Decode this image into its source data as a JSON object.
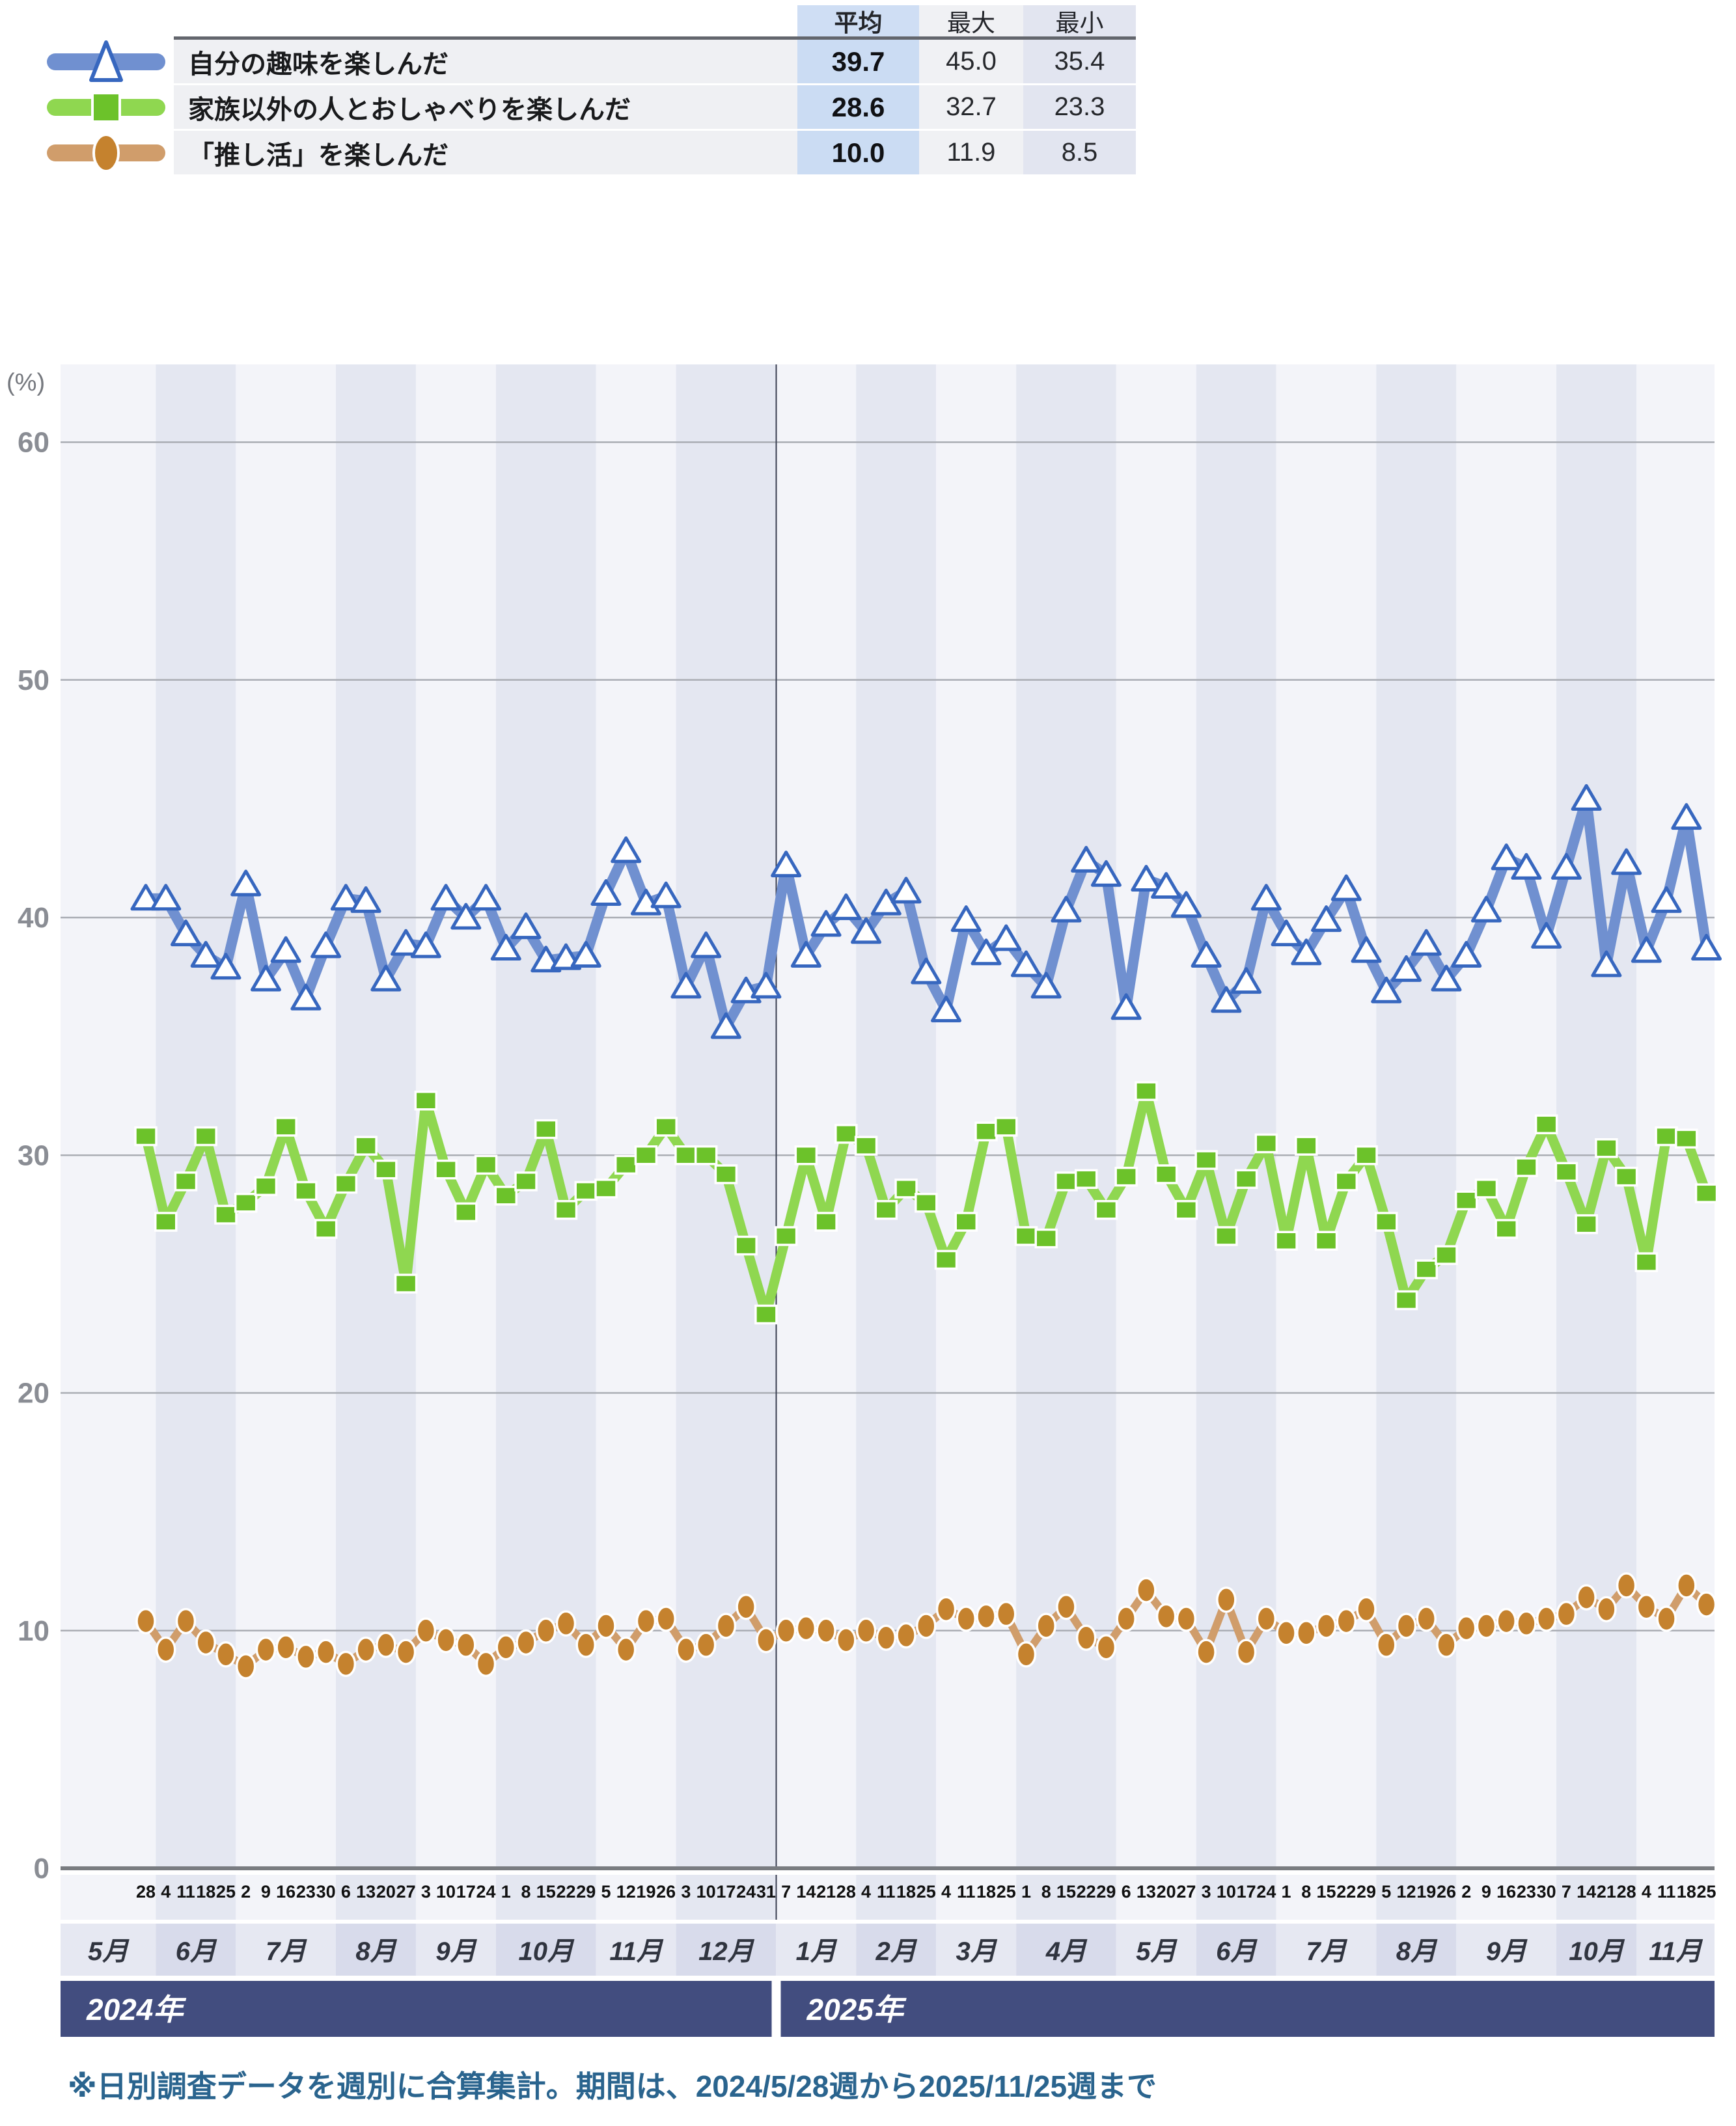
{
  "table": {
    "headers": {
      "avg": "平均",
      "max": "最大",
      "min": "最小"
    },
    "rows": [
      {
        "label": "自分の趣味を楽しんだ",
        "avg": "39.7",
        "max": "45.0",
        "min": "35.4"
      },
      {
        "label": "家族以外の人とおしゃべりを楽しんだ",
        "avg": "28.6",
        "max": "32.7",
        "min": "23.3"
      },
      {
        "label": "「推し活」を楽しんだ",
        "avg": "10.0",
        "max": "11.9",
        "min": "8.5"
      }
    ]
  },
  "footnote": "※日別調査データを週別に合算集計。期間は、2024/5/28週から2025/11/25週まで",
  "chart_data": {
    "type": "line",
    "unit_label": "(%)",
    "ylim": [
      0,
      60
    ],
    "yticks": [
      0,
      10,
      20,
      30,
      40,
      50,
      60
    ],
    "grid": true,
    "legend_position": "top-left-table",
    "band_colors": {
      "light": "#F3F4F9",
      "dark": "#E4E7F1"
    },
    "month_row_colors": {
      "light": "#E6E8F2",
      "dark": "#D8DBEB"
    },
    "year_bar_color": "#424D7F",
    "axis_line_color": "#797C81",
    "gridline_color": "#AAADB4",
    "tick_label_color": "#8A8D94",
    "week_label_color": "#111111",
    "month_label_color": "#30343F",
    "divider_color": "#3C4254",
    "years": [
      {
        "label": "2024年",
        "months": [
          {
            "label": "5月",
            "weeks": [
              "28"
            ]
          },
          {
            "label": "6月",
            "weeks": [
              "4",
              "11",
              "18",
              "25"
            ]
          },
          {
            "label": "7月",
            "weeks": [
              "2",
              "9",
              "16",
              "23",
              "30"
            ]
          },
          {
            "label": "8月",
            "weeks": [
              "6",
              "13",
              "20",
              "27"
            ]
          },
          {
            "label": "9月",
            "weeks": [
              "3",
              "10",
              "17",
              "24"
            ]
          },
          {
            "label": "10月",
            "weeks": [
              "1",
              "8",
              "15",
              "22",
              "29"
            ]
          },
          {
            "label": "11月",
            "weeks": [
              "5",
              "12",
              "19",
              "26"
            ]
          },
          {
            "label": "12月",
            "weeks": [
              "3",
              "10",
              "17",
              "24",
              "31"
            ]
          }
        ]
      },
      {
        "label": "2025年",
        "months": [
          {
            "label": "1月",
            "weeks": [
              "7",
              "14",
              "21",
              "28"
            ]
          },
          {
            "label": "2月",
            "weeks": [
              "4",
              "11",
              "18",
              "25"
            ]
          },
          {
            "label": "3月",
            "weeks": [
              "4",
              "11",
              "18",
              "25"
            ]
          },
          {
            "label": "4月",
            "weeks": [
              "1",
              "8",
              "15",
              "22",
              "29"
            ]
          },
          {
            "label": "5月",
            "weeks": [
              "6",
              "13",
              "20",
              "27"
            ]
          },
          {
            "label": "6月",
            "weeks": [
              "3",
              "10",
              "17",
              "24"
            ]
          },
          {
            "label": "7月",
            "weeks": [
              "1",
              "8",
              "15",
              "22",
              "29"
            ]
          },
          {
            "label": "8月",
            "weeks": [
              "5",
              "12",
              "19",
              "26"
            ]
          },
          {
            "label": "9月",
            "weeks": [
              "2",
              "9",
              "16",
              "23",
              "30"
            ]
          },
          {
            "label": "10月",
            "weeks": [
              "7",
              "14",
              "21",
              "28"
            ]
          },
          {
            "label": "11月",
            "weeks": [
              "4",
              "11",
              "18",
              "25"
            ]
          }
        ]
      }
    ],
    "series": [
      {
        "name": "自分の趣味を楽しんだ",
        "marker": "triangle",
        "line_color": "#7090D0",
        "marker_color": "#3767BF",
        "marker_fill": "#FFFFFF",
        "values": [
          40.8,
          40.8,
          39.3,
          38.4,
          37.9,
          41.4,
          37.4,
          38.6,
          36.6,
          38.8,
          40.8,
          40.7,
          37.4,
          38.9,
          38.8,
          40.8,
          40.0,
          40.8,
          38.7,
          39.6,
          38.2,
          38.3,
          38.4,
          41.0,
          42.8,
          40.6,
          40.9,
          37.1,
          38.8,
          35.4,
          36.9,
          37.1,
          42.2,
          38.4,
          39.7,
          40.4,
          39.4,
          40.6,
          41.1,
          37.7,
          36.1,
          39.9,
          38.5,
          39.1,
          38.0,
          37.1,
          40.3,
          42.4,
          41.8,
          36.2,
          41.6,
          41.3,
          40.5,
          38.4,
          36.5,
          37.3,
          40.8,
          39.3,
          38.5,
          39.9,
          41.2,
          38.6,
          36.9,
          37.8,
          38.9,
          37.4,
          38.4,
          40.3,
          42.5,
          42.1,
          39.2,
          42.1,
          45.0,
          38.0,
          42.3,
          38.6,
          40.7,
          44.2,
          38.7
        ]
      },
      {
        "name": "家族以外の人とおしゃべりを楽しんだ",
        "marker": "square",
        "line_color": "#8FD750",
        "marker_color": "#6CC22A",
        "marker_fill": "#6CC22A",
        "values": [
          30.8,
          27.2,
          28.9,
          30.8,
          27.5,
          28.0,
          28.7,
          31.2,
          28.5,
          26.9,
          28.8,
          30.4,
          29.4,
          24.6,
          32.3,
          29.4,
          27.6,
          29.6,
          28.3,
          28.9,
          31.1,
          27.7,
          28.5,
          28.6,
          29.6,
          30.0,
          31.2,
          30.0,
          30.0,
          29.2,
          26.2,
          23.3,
          26.6,
          30.0,
          27.2,
          30.9,
          30.4,
          27.7,
          28.6,
          28.0,
          25.6,
          27.2,
          31.0,
          31.2,
          26.6,
          26.5,
          28.9,
          29.0,
          27.7,
          29.1,
          32.7,
          29.2,
          27.7,
          29.8,
          26.6,
          29.0,
          30.5,
          26.4,
          30.4,
          26.4,
          28.9,
          30.0,
          27.2,
          23.9,
          25.2,
          25.8,
          28.1,
          28.6,
          26.9,
          29.5,
          31.3,
          29.3,
          27.1,
          30.3,
          29.1,
          25.5,
          30.8,
          30.7,
          28.4
        ]
      },
      {
        "name": "「推し活」を楽しんだ",
        "marker": "circle",
        "line_color": "#D09D6B",
        "marker_color": "#C5822E",
        "marker_fill": "#C5822E",
        "values": [
          10.4,
          9.2,
          10.4,
          9.5,
          9.0,
          8.5,
          9.2,
          9.3,
          8.9,
          9.1,
          8.6,
          9.2,
          9.4,
          9.1,
          10.0,
          9.6,
          9.4,
          8.6,
          9.3,
          9.5,
          10.0,
          10.3,
          9.4,
          10.2,
          9.2,
          10.4,
          10.5,
          9.2,
          9.4,
          10.2,
          11.0,
          9.6,
          10.0,
          10.1,
          10.0,
          9.6,
          10.0,
          9.7,
          9.8,
          10.2,
          10.9,
          10.5,
          10.6,
          10.7,
          9.0,
          10.2,
          11.0,
          9.7,
          9.3,
          10.5,
          11.7,
          10.6,
          10.5,
          9.1,
          11.3,
          9.1,
          10.5,
          9.9,
          9.9,
          10.2,
          10.4,
          10.9,
          9.4,
          10.2,
          10.5,
          9.4,
          10.1,
          10.2,
          10.4,
          10.3,
          10.5,
          10.7,
          11.4,
          10.9,
          11.9,
          11.0,
          10.5,
          11.9,
          11.1
        ]
      }
    ]
  }
}
